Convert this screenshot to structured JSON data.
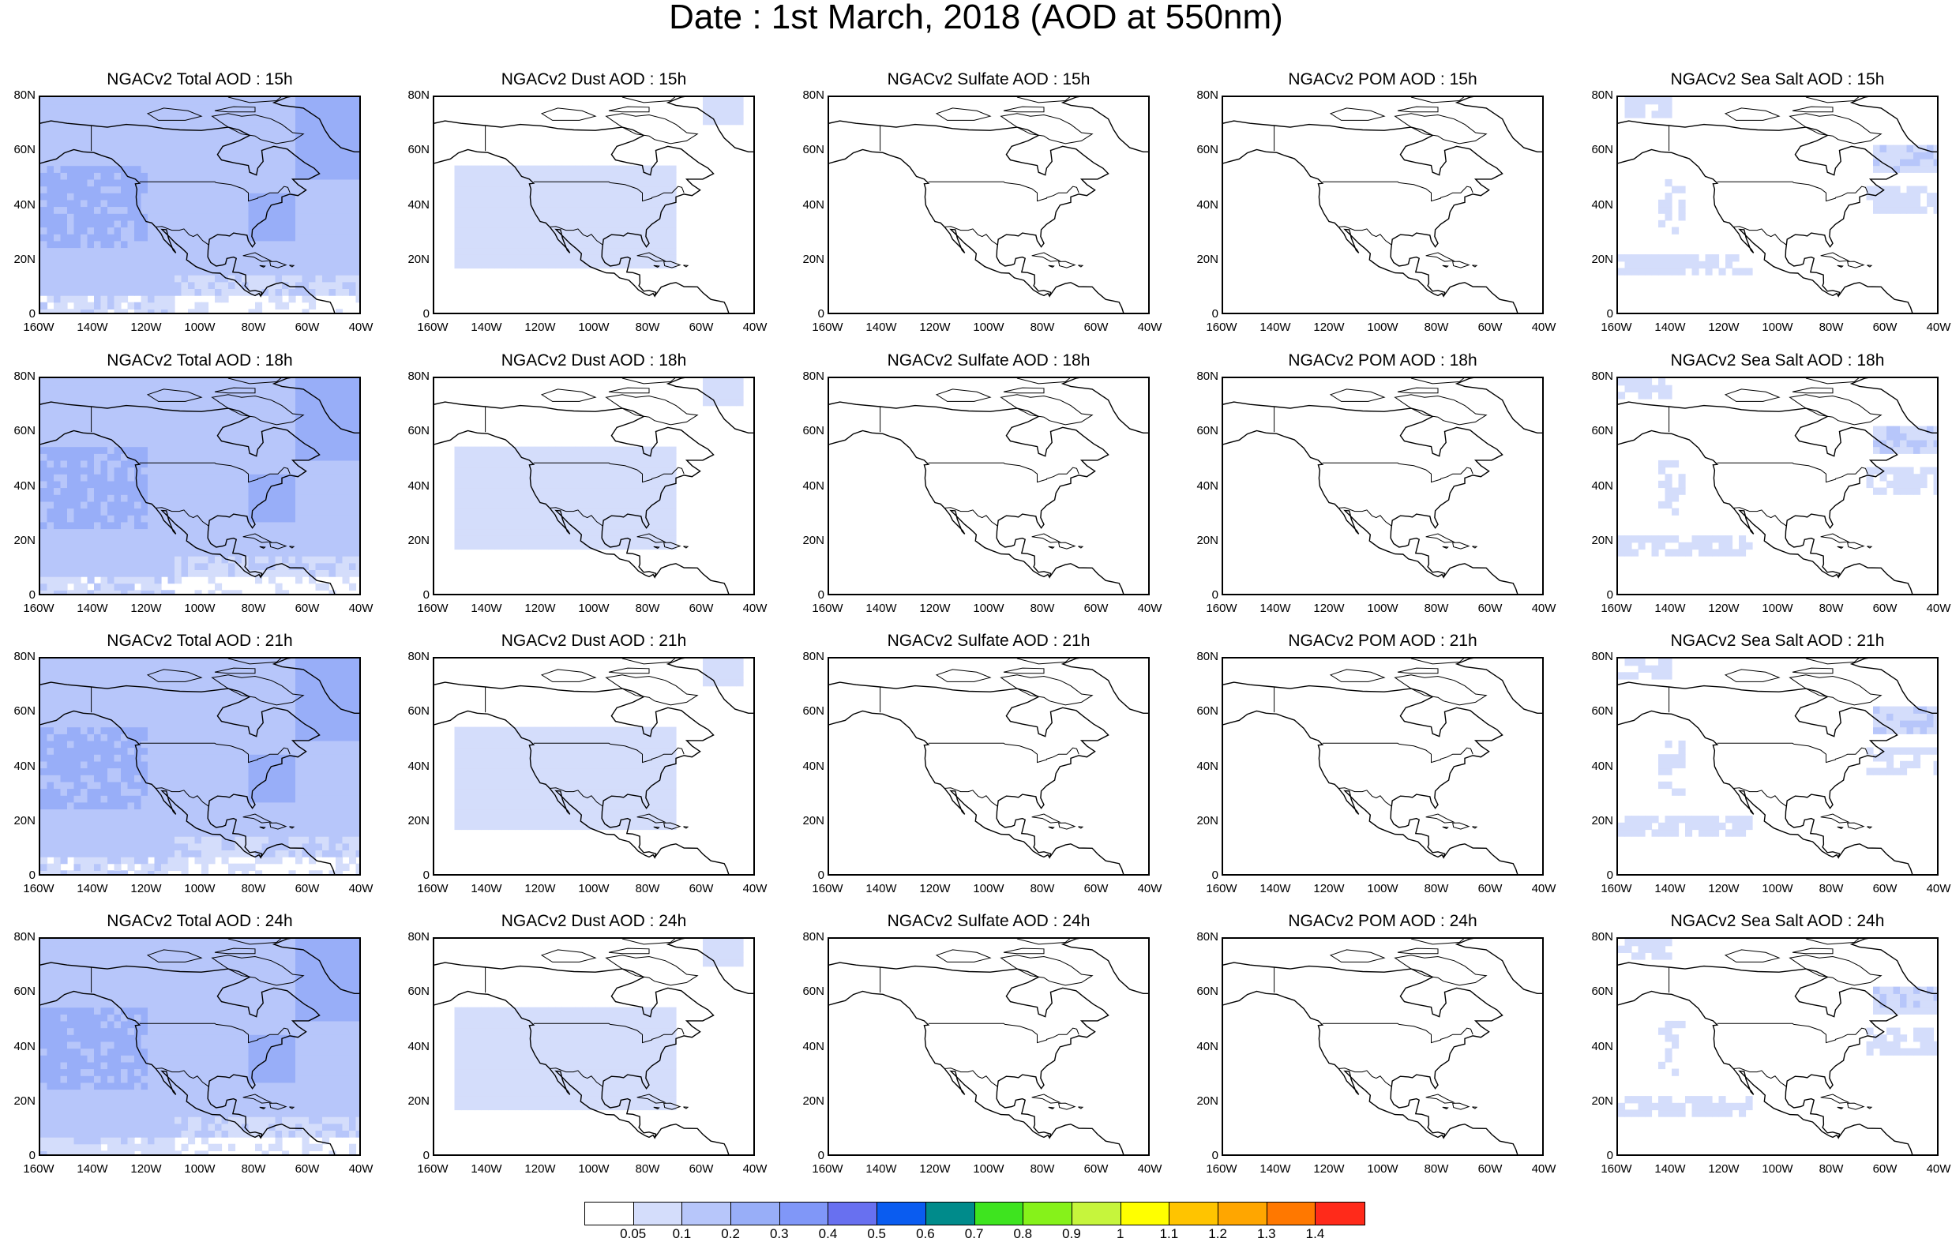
{
  "title": "Date : 1st March, 2018 (AOD at 550nm)",
  "x_ticks": [
    "160W",
    "140W",
    "120W",
    "100W",
    "80W",
    "60W",
    "40W"
  ],
  "y_ticks": [
    "80N",
    "60N",
    "40N",
    "20N",
    "0"
  ],
  "panels": [
    {
      "title": "NGACv2 Total AOD : 15h",
      "field": "total",
      "intensity": 1.0
    },
    {
      "title": "NGACv2 Dust AOD : 15h",
      "field": "dust",
      "intensity": 0.9
    },
    {
      "title": "NGACv2 Sulfate AOD : 15h",
      "field": "sulfate",
      "intensity": 0.5
    },
    {
      "title": "NGACv2 POM AOD : 15h",
      "field": "pom",
      "intensity": 0.4
    },
    {
      "title": "NGACv2 Sea Salt AOD : 15h",
      "field": "seasalt",
      "intensity": 0.9
    },
    {
      "title": "NGACv2 Total AOD : 18h",
      "field": "total",
      "intensity": 1.0
    },
    {
      "title": "NGACv2 Dust AOD : 18h",
      "field": "dust",
      "intensity": 0.9
    },
    {
      "title": "NGACv2 Sulfate AOD : 18h",
      "field": "sulfate",
      "intensity": 0.5
    },
    {
      "title": "NGACv2 POM AOD : 18h",
      "field": "pom",
      "intensity": 0.4
    },
    {
      "title": "NGACv2 Sea Salt AOD : 18h",
      "field": "seasalt",
      "intensity": 0.9
    },
    {
      "title": "NGACv2 Total AOD : 21h",
      "field": "total",
      "intensity": 1.0
    },
    {
      "title": "NGACv2 Dust AOD : 21h",
      "field": "dust",
      "intensity": 0.9
    },
    {
      "title": "NGACv2 Sulfate AOD : 21h",
      "field": "sulfate",
      "intensity": 0.5
    },
    {
      "title": "NGACv2 POM AOD : 21h",
      "field": "pom",
      "intensity": 0.4
    },
    {
      "title": "NGACv2 Sea Salt AOD : 21h",
      "field": "seasalt",
      "intensity": 0.9
    },
    {
      "title": "NGACv2 Total AOD : 24h",
      "field": "total",
      "intensity": 1.0
    },
    {
      "title": "NGACv2 Dust AOD : 24h",
      "field": "dust",
      "intensity": 0.9
    },
    {
      "title": "NGACv2 Sulfate AOD : 24h",
      "field": "sulfate",
      "intensity": 0.5
    },
    {
      "title": "NGACv2 POM AOD : 24h",
      "field": "pom",
      "intensity": 0.4
    },
    {
      "title": "NGACv2 Sea Salt  AOD : 24h",
      "field": "seasalt",
      "intensity": 0.9
    }
  ],
  "colorbar": {
    "colors": [
      "#ffffff",
      "#d4ddfb",
      "#b7c6fa",
      "#98aef8",
      "#8097f8",
      "#6870f0",
      "#0a5cf0",
      "#008b8b",
      "#3ee41f",
      "#86f21a",
      "#c6f53c",
      "#ffff00",
      "#ffc400",
      "#ffa600",
      "#ff7800",
      "#ff2a1a"
    ],
    "labels": [
      "0.05",
      "0.1",
      "0.2",
      "0.3",
      "0.4",
      "0.5",
      "0.6",
      "0.7",
      "0.8",
      "0.9",
      "1",
      "1.1",
      "1.2",
      "1.3",
      "1.4"
    ]
  }
}
